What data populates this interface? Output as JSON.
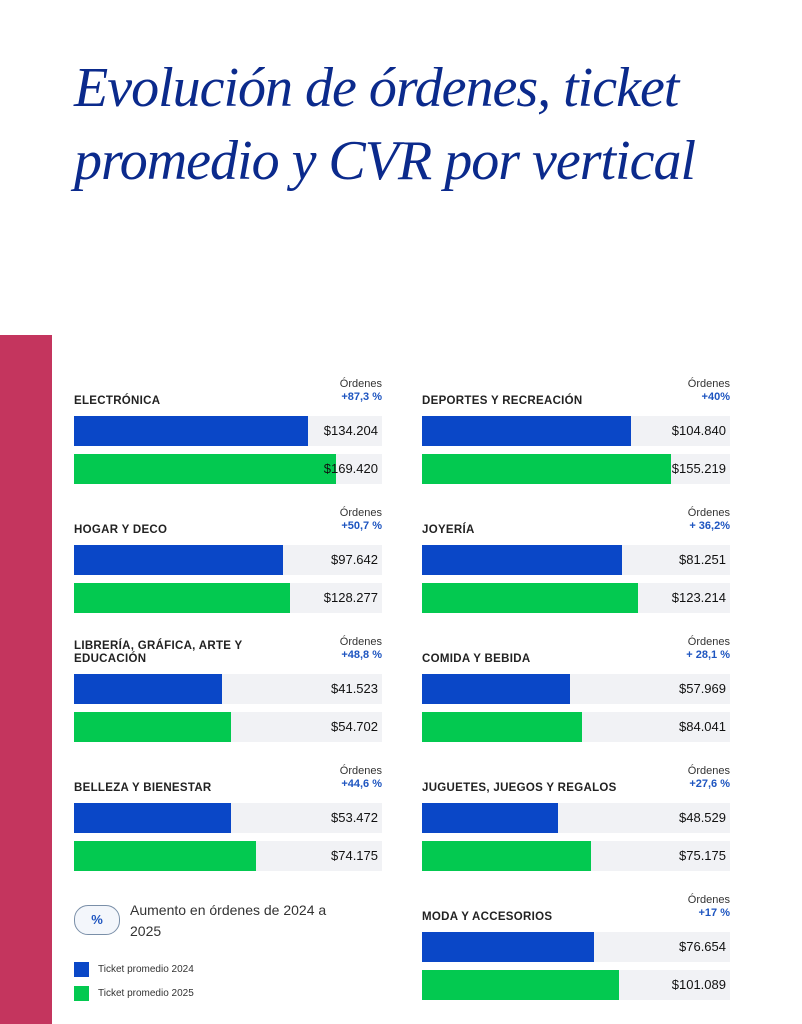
{
  "title": "Evolución de órdenes, ticket promedio y CVR por vertical",
  "colors": {
    "ticket_2024": "#0a47c7",
    "ticket_2025": "#03c950",
    "accent_side": "#c4355e",
    "title": "#0b2a8c"
  },
  "orders_label": "Órdenes",
  "chart_data": {
    "type": "bar",
    "orientation": "horizontal",
    "series_names": [
      "Ticket promedio 2024",
      "Ticket promedio 2025"
    ],
    "panels": [
      {
        "category": "ELECTRÓNICA",
        "orders_change": "+87,3 %",
        "v2024": "$134.204",
        "v2025": "$169.420",
        "fill2024": 0.76,
        "fill2025": 0.85
      },
      {
        "category": "HOGAR Y DECO",
        "orders_change": "+50,7 %",
        "v2024": "$97.642",
        "v2025": "$128.277",
        "fill2024": 0.68,
        "fill2025": 0.7
      },
      {
        "category": "LIBRERÍA, GRÁFICA, ARTE Y EDUCACIÓN",
        "orders_change": "+48,8 %",
        "v2024": "$41.523",
        "v2025": "$54.702",
        "fill2024": 0.48,
        "fill2025": 0.51
      },
      {
        "category": "BELLEZA Y BIENESTAR",
        "orders_change": "+44,6 %",
        "v2024": "$53.472",
        "v2025": "$74.175",
        "fill2024": 0.51,
        "fill2025": 0.59
      },
      {
        "category": "DEPORTES Y RECREACIÓN",
        "orders_change": "+40%",
        "v2024": "$104.840",
        "v2025": "$155.219",
        "fill2024": 0.68,
        "fill2025": 0.81
      },
      {
        "category": "JOYERÍA",
        "orders_change": "+ 36,2%",
        "v2024": "$81.251",
        "v2025": "$123.214",
        "fill2024": 0.65,
        "fill2025": 0.7
      },
      {
        "category": "COMIDA Y BEBIDA",
        "orders_change": "+ 28,1 %",
        "v2024": "$57.969",
        "v2025": "$84.041",
        "fill2024": 0.48,
        "fill2025": 0.52
      },
      {
        "category": "JUGUETES, JUEGOS Y REGALOS",
        "orders_change": "+27,6 %",
        "v2024": "$48.529",
        "v2025": "$75.175",
        "fill2024": 0.44,
        "fill2025": 0.55
      },
      {
        "category": "MODA Y ACCESORIOS",
        "orders_change": "+17 %",
        "v2024": "$76.654",
        "v2025": "$101.089",
        "fill2024": 0.56,
        "fill2025": 0.64
      }
    ]
  },
  "legend": {
    "pct_symbol": "%",
    "pct_text": "Aumento en órdenes de 2024 a 2025",
    "items": [
      "Ticket promedio 2024",
      "Ticket promedio 2025"
    ]
  }
}
